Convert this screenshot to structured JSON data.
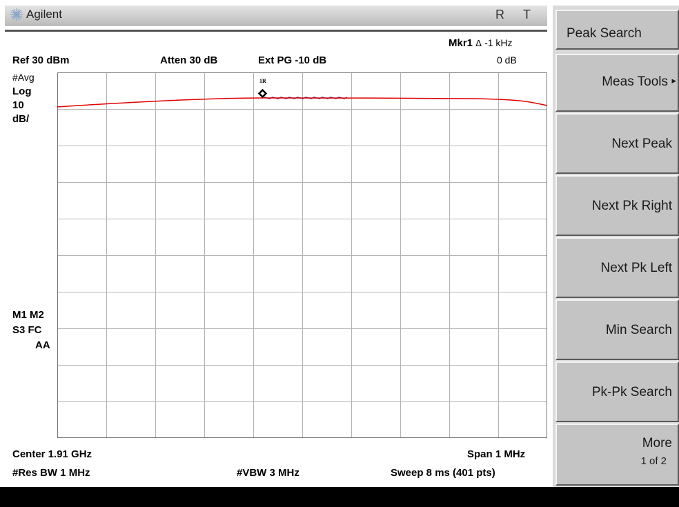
{
  "title_bar": {
    "brand": "Agilent",
    "status_flags": [
      "R",
      "T"
    ]
  },
  "marker_readout": {
    "name": "Mkr1",
    "delta_symbol": "Δ",
    "freq": "-1 kHz",
    "amplitude": "0 dB"
  },
  "settings": {
    "ref_level": "Ref 30 dBm",
    "attenuation": "Atten 30 dB",
    "ext_gain": "Ext PG -10 dB"
  },
  "left_annotations": {
    "avg": "#Avg",
    "scale_type": "Log",
    "scale_value": "10",
    "scale_unit": "dB/",
    "markers_line1": "M1  M2",
    "markers_line2": "S3  FC",
    "markers_line3": "AA"
  },
  "trace": {
    "marker_label": "1R",
    "color": "#e00000",
    "noise_color": "#3030b0"
  },
  "footer": {
    "center": "Center 1.91 GHz",
    "span": "Span 1 MHz",
    "rbw": "#Res BW 1 MHz",
    "vbw": "#VBW 3 MHz",
    "sweep": "Sweep 8 ms (401 pts)"
  },
  "softkeys": [
    {
      "label": "Peak Search"
    },
    {
      "label": "Meas Tools",
      "arrow": "▸"
    },
    {
      "label": "Next Peak"
    },
    {
      "label": "Next Pk Right"
    },
    {
      "label": "Next Pk Left"
    },
    {
      "label": "Min Search"
    },
    {
      "label": "Pk-Pk Search"
    },
    {
      "label": "More",
      "sub": "1 of 2"
    }
  ]
}
